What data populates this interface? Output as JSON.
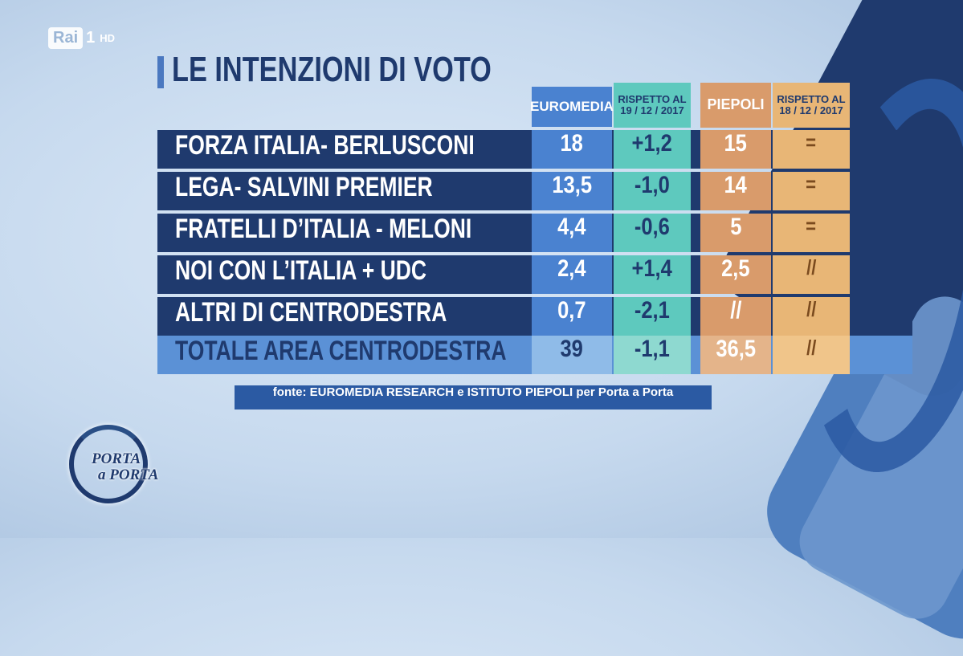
{
  "channel": {
    "brand": "Rai",
    "number": "1",
    "quality": "HD"
  },
  "show": {
    "line1": "PORTA",
    "line2": "a PORTA"
  },
  "title": "LE INTENZIONI DI VOTO",
  "columns": {
    "euromedia": "EUROMEDIA",
    "euromedia_diff": [
      "RISPETTO AL",
      "19 / 12 / 2017"
    ],
    "piepoli": "PIEPOLI",
    "piepoli_diff": [
      "RISPETTO AL",
      "18 / 12 / 2017"
    ]
  },
  "source": "fonte: EUROMEDIA RESEARCH e ISTITUTO PIEPOLI per Porta a Porta",
  "colors": {
    "row_dark": "#1f3a6e",
    "row_total": "#5b91d6",
    "euromedia": "#4a82d0",
    "euromedia_diff": "#5ec9be",
    "piepoli": "#d99b6b",
    "piepoli_diff": "#e8b676"
  },
  "chart_data": {
    "type": "table",
    "title": "LE INTENZIONI DI VOTO",
    "columns": [
      "EUROMEDIA",
      "RISPETTO AL 19 / 12 / 2017",
      "PIEPOLI",
      "RISPETTO AL 18 / 12 / 2017"
    ],
    "rows": [
      {
        "label": "FORZA ITALIA- BERLUSCONI",
        "euromedia": "18",
        "euromedia_diff": "+1,2",
        "piepoli": "15",
        "piepoli_diff": "="
      },
      {
        "label": "LEGA- SALVINI PREMIER",
        "euromedia": "13,5",
        "euromedia_diff": "-1,0",
        "piepoli": "14",
        "piepoli_diff": "="
      },
      {
        "label": "FRATELLI D’ITALIA - MELONI",
        "euromedia": "4,4",
        "euromedia_diff": "-0,6",
        "piepoli": "5",
        "piepoli_diff": "="
      },
      {
        "label": "NOI CON L’ITALIA + UDC",
        "euromedia": "2,4",
        "euromedia_diff": "+1,4",
        "piepoli": "2,5",
        "piepoli_diff": "//"
      },
      {
        "label": "ALTRI DI CENTRODESTRA",
        "euromedia": "0,7",
        "euromedia_diff": "-2,1",
        "piepoli": "//",
        "piepoli_diff": "//"
      },
      {
        "label": "TOTALE AREA CENTRODESTRA",
        "euromedia": "39",
        "euromedia_diff": "-1,1",
        "piepoli": "36,5",
        "piepoli_diff": "//",
        "total": true
      }
    ],
    "source": "fonte: EUROMEDIA RESEARCH e ISTITUTO PIEPOLI per Porta a Porta"
  }
}
